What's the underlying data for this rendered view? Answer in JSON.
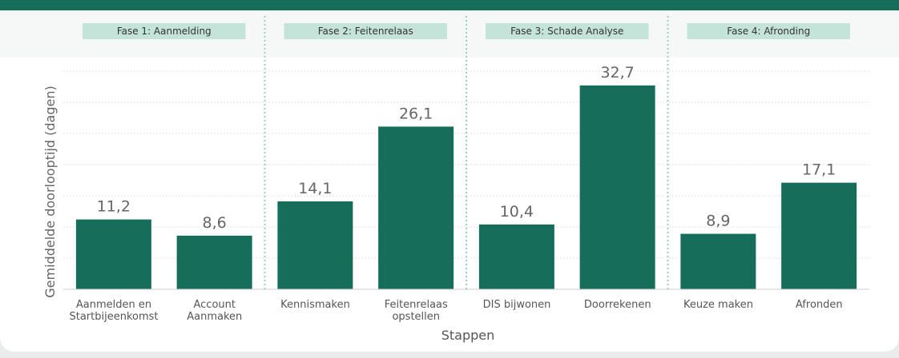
{
  "chart_data": {
    "type": "bar",
    "categories": [
      "Aanmelden en\nStartbijeenkomst",
      "Account\nAanmaken",
      "Kennismaken",
      "Feitenrelaas\nopstellen",
      "DIS bijwonen",
      "Doorrekenen",
      "Keuze maken",
      "Afronden"
    ],
    "values": [
      11.2,
      8.6,
      14.1,
      26.1,
      10.4,
      32.7,
      8.9,
      17.1
    ],
    "value_labels": [
      "11,2",
      "8,6",
      "14,1",
      "26,1",
      "10,4",
      "32,7",
      "8,9",
      "17,1"
    ],
    "color": "#166e5a",
    "ylabel": "Gemiddelde doorlooptijd (dagen)",
    "xlabel": "Stappen",
    "phases": [
      "Fase 1: Aanmelding",
      "Fase 2: Feitenrelaas",
      "Fase 3: Schade Analyse",
      "Fase 4: Afronding"
    ],
    "ylim": [
      0,
      35
    ],
    "yticks": [
      0,
      5,
      10,
      15,
      20,
      25,
      30,
      35
    ],
    "grid": true
  }
}
